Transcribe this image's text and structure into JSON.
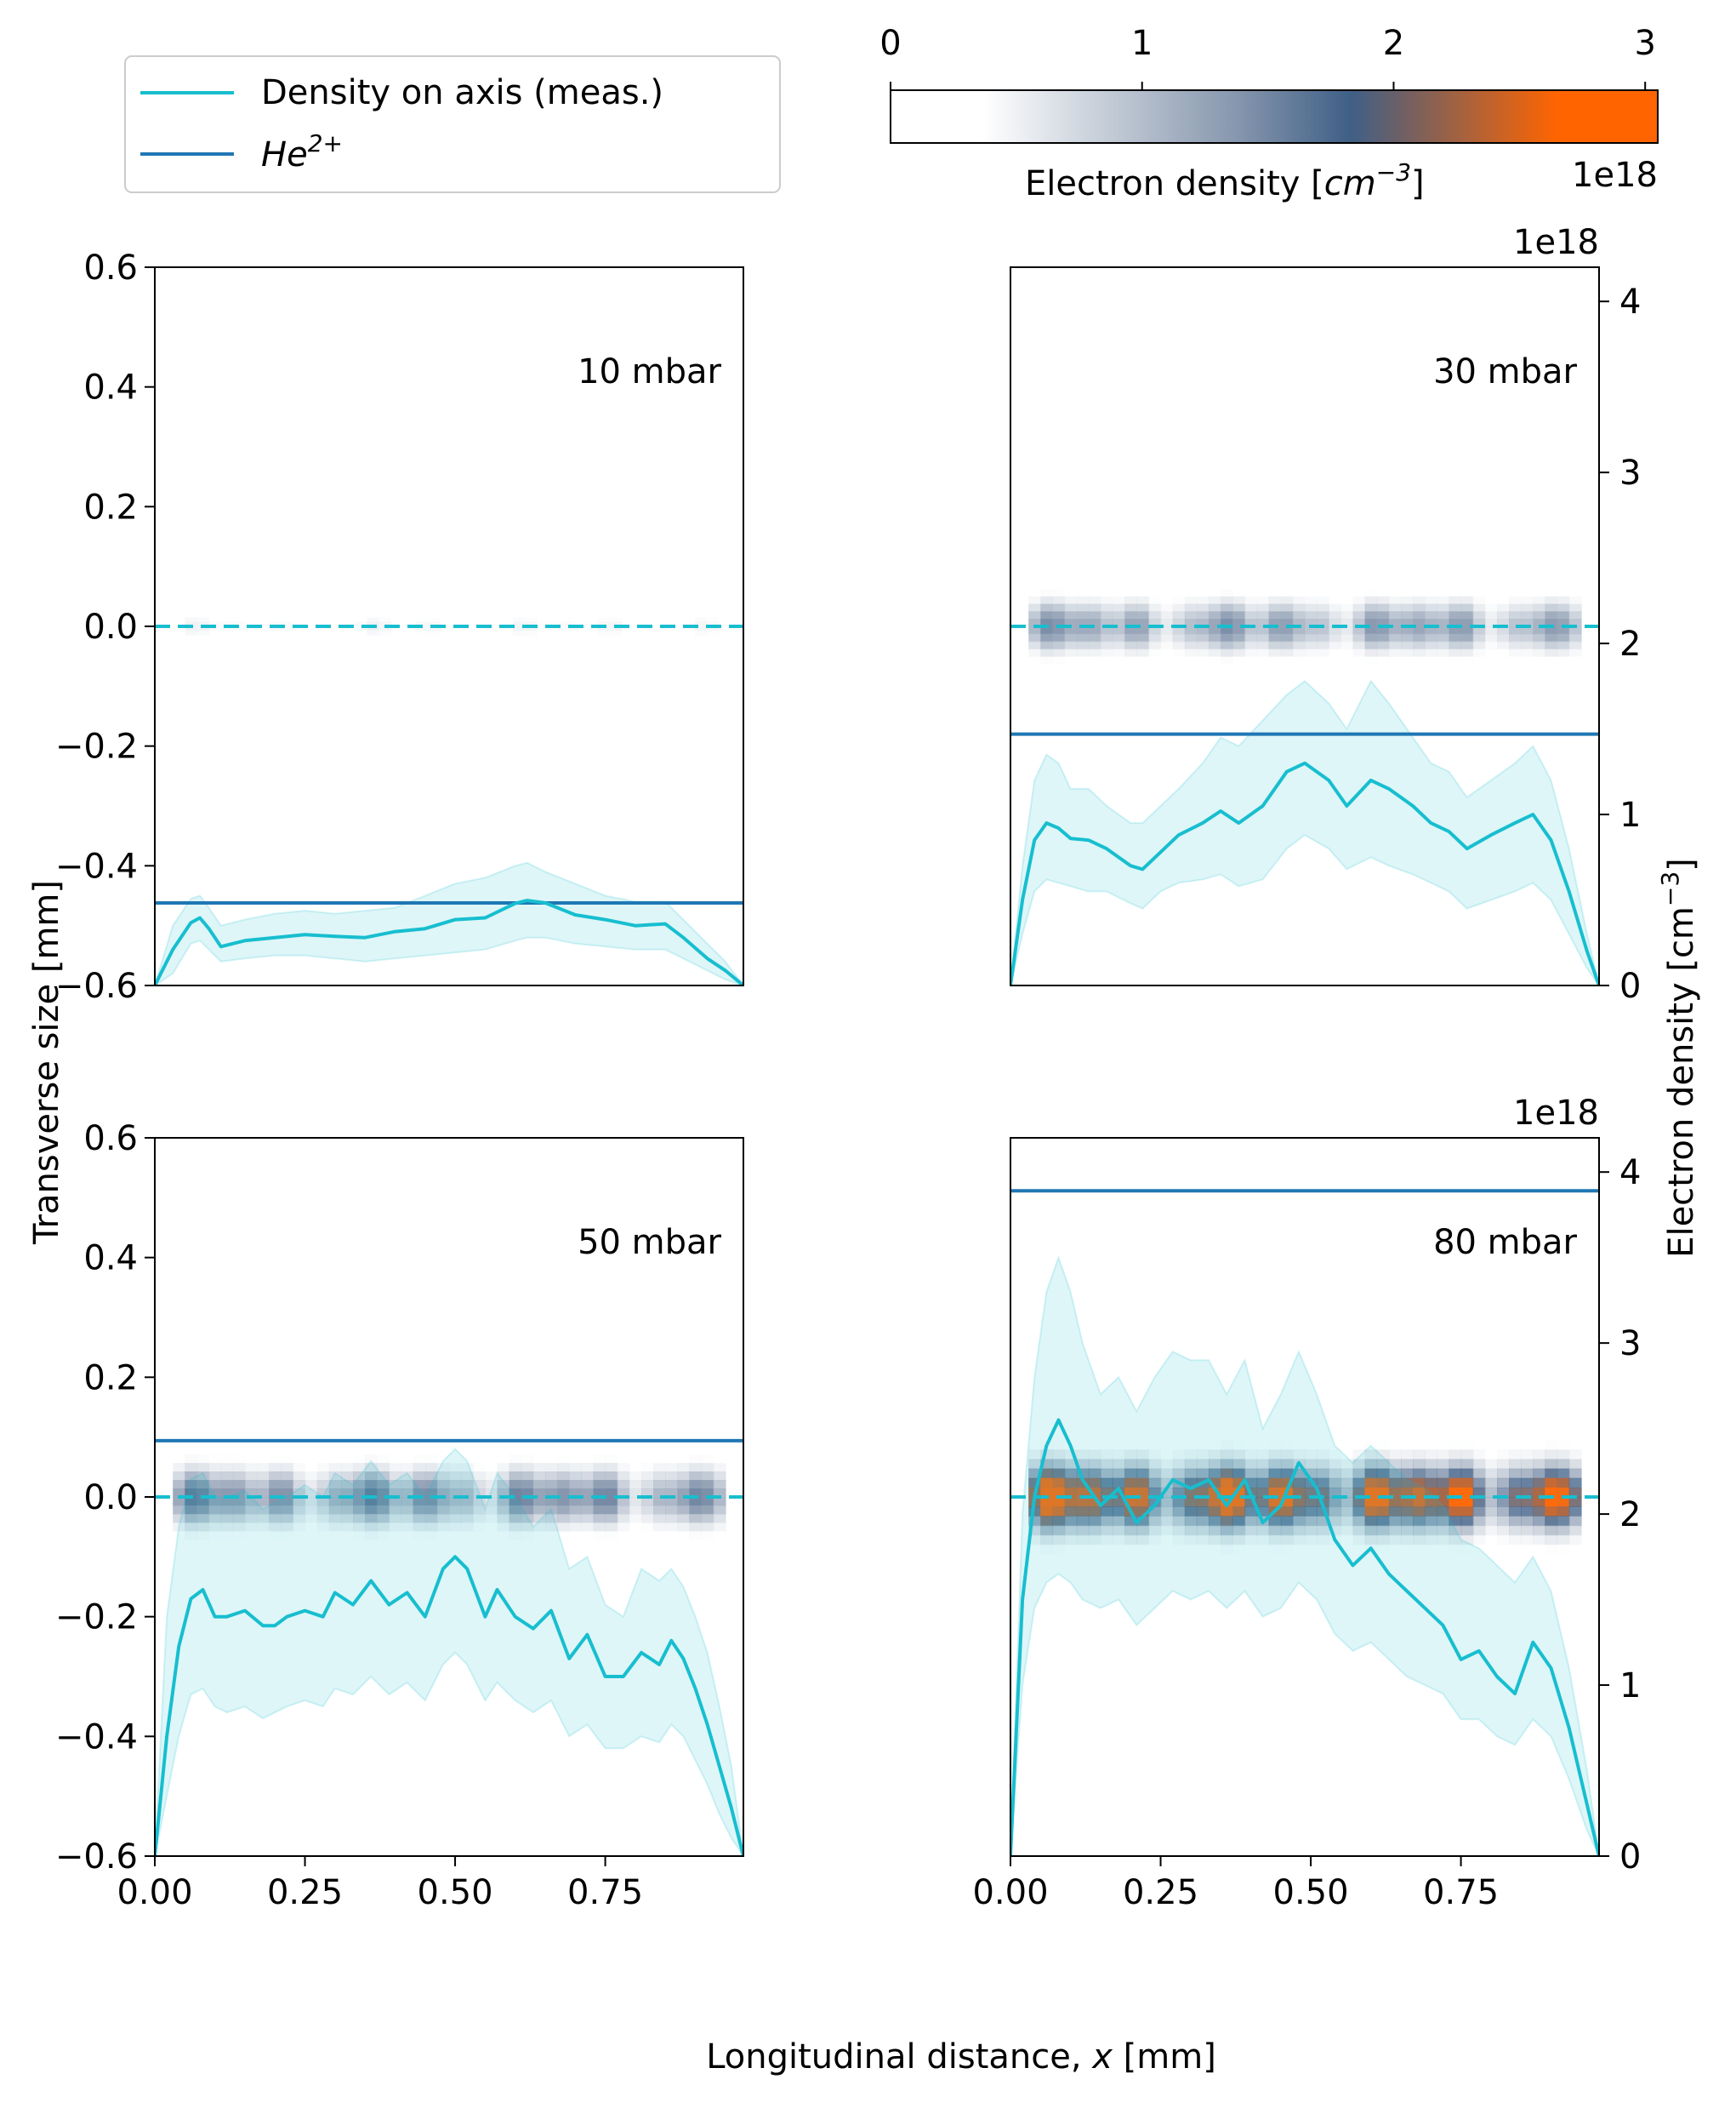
{
  "figure": {
    "xlabel": "Longitudinal distance, x [mm]",
    "xlabel_prefix": "Longitudinal distance, ",
    "xlabel_var": "x",
    "xlabel_unit": " [mm]",
    "ylabel_left": "Transverse size [mm]",
    "ylabel_right": "Electron density [cm⁻³]",
    "ylabel_right_base": "Electron density [cm",
    "ylabel_right_exp": "−3",
    "ylabel_right_close": "]"
  },
  "legend": {
    "entries": [
      {
        "label": "Density on axis (meas.)",
        "color": "#17becf"
      },
      {
        "label_base": "He",
        "label_sup": "2+",
        "label": "He2+",
        "color": "#1f77b4"
      }
    ]
  },
  "colorbar": {
    "label_base": "Electron density [",
    "label_var": "cm",
    "label_exp": "−3",
    "label_close": "]",
    "label": "Electron density [cm⁻³]",
    "ticks": [
      "0",
      "1",
      "2",
      "3"
    ],
    "offset": "1e18",
    "range": [
      0,
      3.05
    ],
    "colors": [
      "#ffffff",
      "#ffffff",
      "#8797ae",
      "#3f5f86",
      "#ff6400",
      "#ff6400"
    ]
  },
  "chart_data": [
    {
      "type": "line",
      "panel": "10 mbar",
      "annotation": "10 mbar",
      "xlim": [
        0,
        0.98
      ],
      "ylim": [
        -0.6,
        0.6
      ],
      "xticks": [
        "0.00",
        "0.25",
        "0.50",
        "0.75"
      ],
      "yticks": [
        "0.6",
        "0.4",
        "0.2",
        "0.0",
        "−0.2",
        "−0.4",
        "−0.6"
      ],
      "show_xticks": false,
      "show_left_yticks": true,
      "show_right_axis": false,
      "dashed_axis_y": 0.0,
      "he2_level": -0.462,
      "heatmap": {
        "x_range": [
          0.03,
          0.96
        ],
        "half_width": 0.045,
        "max_density_1e18": 0.5
      },
      "density_curve": {
        "x": [
          0.0,
          0.03,
          0.06,
          0.075,
          0.09,
          0.11,
          0.15,
          0.2,
          0.25,
          0.3,
          0.35,
          0.4,
          0.45,
          0.5,
          0.55,
          0.6,
          0.62,
          0.65,
          0.7,
          0.75,
          0.8,
          0.85,
          0.88,
          0.92,
          0.95,
          0.98
        ],
        "y": [
          -0.6,
          -0.54,
          -0.495,
          -0.487,
          -0.505,
          -0.535,
          -0.525,
          -0.52,
          -0.515,
          -0.518,
          -0.52,
          -0.51,
          -0.505,
          -0.49,
          -0.487,
          -0.463,
          -0.458,
          -0.462,
          -0.482,
          -0.49,
          -0.5,
          -0.497,
          -0.52,
          -0.555,
          -0.575,
          -0.6
        ],
        "band_upper": [
          -0.6,
          -0.5,
          -0.455,
          -0.45,
          -0.47,
          -0.5,
          -0.49,
          -0.48,
          -0.475,
          -0.48,
          -0.475,
          -0.47,
          -0.45,
          -0.43,
          -0.42,
          -0.4,
          -0.395,
          -0.41,
          -0.43,
          -0.45,
          -0.46,
          -0.46,
          -0.49,
          -0.53,
          -0.56,
          -0.6
        ],
        "band_lower": [
          -0.6,
          -0.58,
          -0.53,
          -0.525,
          -0.54,
          -0.56,
          -0.555,
          -0.55,
          -0.55,
          -0.555,
          -0.56,
          -0.555,
          -0.55,
          -0.545,
          -0.54,
          -0.525,
          -0.52,
          -0.52,
          -0.53,
          -0.535,
          -0.54,
          -0.54,
          -0.555,
          -0.575,
          -0.59,
          -0.6
        ]
      }
    },
    {
      "type": "line",
      "panel": "30 mbar",
      "annotation": "30 mbar",
      "xlim": [
        0,
        0.98
      ],
      "ylim": [
        -0.6,
        0.6
      ],
      "xticks": [
        "0.00",
        "0.25",
        "0.50",
        "0.75"
      ],
      "yticks_right": [
        "0",
        "1",
        "2",
        "3",
        "4"
      ],
      "right_ylim": [
        0,
        4.2
      ],
      "right_offset": "1e18",
      "show_xticks": false,
      "show_left_yticks": false,
      "show_right_axis": true,
      "dashed_axis_y": 0.0,
      "he2_level": 1.47,
      "heatmap": {
        "x_range": [
          0.03,
          0.95
        ],
        "half_width": 0.075,
        "max_density_1e18": 1.5
      },
      "density_curve": {
        "x": [
          0.0,
          0.02,
          0.04,
          0.06,
          0.08,
          0.1,
          0.13,
          0.16,
          0.2,
          0.22,
          0.25,
          0.28,
          0.32,
          0.35,
          0.38,
          0.42,
          0.46,
          0.49,
          0.53,
          0.56,
          0.6,
          0.63,
          0.67,
          0.7,
          0.73,
          0.76,
          0.8,
          0.84,
          0.87,
          0.9,
          0.93,
          0.96,
          0.98
        ],
        "y": [
          0,
          0.5,
          0.85,
          0.95,
          0.92,
          0.86,
          0.85,
          0.8,
          0.7,
          0.68,
          0.78,
          0.88,
          0.95,
          1.02,
          0.95,
          1.05,
          1.25,
          1.3,
          1.2,
          1.05,
          1.2,
          1.15,
          1.05,
          0.95,
          0.9,
          0.8,
          0.88,
          0.95,
          1.0,
          0.85,
          0.55,
          0.2,
          0
        ],
        "band_upper": [
          0,
          0.7,
          1.2,
          1.35,
          1.3,
          1.15,
          1.15,
          1.05,
          0.95,
          0.95,
          1.05,
          1.15,
          1.3,
          1.45,
          1.4,
          1.55,
          1.7,
          1.78,
          1.65,
          1.5,
          1.78,
          1.65,
          1.45,
          1.3,
          1.25,
          1.1,
          1.2,
          1.3,
          1.4,
          1.2,
          0.8,
          0.3,
          0
        ],
        "band_lower": [
          0,
          0.3,
          0.55,
          0.62,
          0.6,
          0.58,
          0.55,
          0.55,
          0.48,
          0.45,
          0.55,
          0.6,
          0.62,
          0.65,
          0.58,
          0.62,
          0.8,
          0.88,
          0.8,
          0.68,
          0.75,
          0.7,
          0.65,
          0.6,
          0.55,
          0.45,
          0.5,
          0.55,
          0.6,
          0.5,
          0.3,
          0.1,
          0
        ]
      }
    },
    {
      "type": "line",
      "panel": "50 mbar",
      "annotation": "50 mbar",
      "xlim": [
        0,
        0.98
      ],
      "ylim": [
        -0.6,
        0.6
      ],
      "xticks": [
        "0.00",
        "0.25",
        "0.50",
        "0.75"
      ],
      "yticks": [
        "0.6",
        "0.4",
        "0.2",
        "0.0",
        "−0.2",
        "−0.4",
        "−0.6"
      ],
      "show_xticks": true,
      "show_left_yticks": true,
      "show_right_axis": false,
      "dashed_axis_y": 0.0,
      "he2_level": 0.094,
      "heatmap": {
        "x_range": [
          0.03,
          0.95
        ],
        "half_width": 0.085,
        "max_density_1e18": 1.7
      },
      "density_curve": {
        "x": [
          0.0,
          0.02,
          0.04,
          0.06,
          0.08,
          0.1,
          0.12,
          0.15,
          0.18,
          0.2,
          0.22,
          0.25,
          0.28,
          0.3,
          0.33,
          0.36,
          0.39,
          0.42,
          0.45,
          0.48,
          0.5,
          0.52,
          0.55,
          0.57,
          0.6,
          0.63,
          0.66,
          0.69,
          0.72,
          0.75,
          0.78,
          0.81,
          0.84,
          0.86,
          0.88,
          0.9,
          0.92,
          0.94,
          0.96,
          0.98
        ],
        "y": [
          -0.6,
          -0.4,
          -0.25,
          -0.17,
          -0.155,
          -0.2,
          -0.2,
          -0.19,
          -0.215,
          -0.215,
          -0.2,
          -0.19,
          -0.2,
          -0.16,
          -0.18,
          -0.14,
          -0.18,
          -0.16,
          -0.2,
          -0.12,
          -0.1,
          -0.12,
          -0.2,
          -0.155,
          -0.2,
          -0.22,
          -0.19,
          -0.27,
          -0.23,
          -0.3,
          -0.3,
          -0.26,
          -0.28,
          -0.24,
          -0.27,
          -0.32,
          -0.38,
          -0.45,
          -0.52,
          -0.6
        ],
        "band_upper": [
          -0.6,
          -0.2,
          -0.05,
          0.03,
          0.04,
          0.0,
          0.0,
          0.01,
          -0.02,
          -0.01,
          0.0,
          0.02,
          0.0,
          0.04,
          0.02,
          0.06,
          0.02,
          0.04,
          0.0,
          0.06,
          0.08,
          0.06,
          -0.02,
          0.04,
          0.0,
          -0.05,
          -0.02,
          -0.12,
          -0.1,
          -0.18,
          -0.2,
          -0.12,
          -0.14,
          -0.12,
          -0.15,
          -0.2,
          -0.26,
          -0.35,
          -0.45,
          -0.6
        ],
        "band_lower": [
          -0.6,
          -0.5,
          -0.4,
          -0.33,
          -0.32,
          -0.35,
          -0.36,
          -0.35,
          -0.37,
          -0.36,
          -0.35,
          -0.34,
          -0.35,
          -0.32,
          -0.33,
          -0.3,
          -0.33,
          -0.31,
          -0.34,
          -0.28,
          -0.26,
          -0.28,
          -0.34,
          -0.31,
          -0.34,
          -0.36,
          -0.34,
          -0.4,
          -0.38,
          -0.42,
          -0.42,
          -0.4,
          -0.41,
          -0.38,
          -0.4,
          -0.44,
          -0.48,
          -0.53,
          -0.57,
          -0.6
        ]
      }
    },
    {
      "type": "line",
      "panel": "80 mbar",
      "annotation": "80 mbar",
      "xlim": [
        0,
        0.98
      ],
      "ylim": [
        -0.6,
        0.6
      ],
      "xticks": [
        "0.00",
        "0.25",
        "0.50",
        "0.75"
      ],
      "yticks_right": [
        "0",
        "1",
        "2",
        "3",
        "4"
      ],
      "right_ylim": [
        0,
        4.2
      ],
      "right_offset": "1e18",
      "show_xticks": true,
      "show_left_yticks": false,
      "show_right_axis": true,
      "dashed_axis_y": 0.0,
      "he2_level": 3.89,
      "heatmap": {
        "x_range": [
          0.03,
          0.95
        ],
        "half_width": 0.095,
        "max_density_1e18": 3.0
      },
      "density_curve": {
        "x": [
          0.0,
          0.02,
          0.04,
          0.06,
          0.08,
          0.1,
          0.12,
          0.15,
          0.18,
          0.21,
          0.24,
          0.27,
          0.3,
          0.33,
          0.36,
          0.39,
          0.42,
          0.45,
          0.48,
          0.51,
          0.54,
          0.57,
          0.6,
          0.63,
          0.66,
          0.69,
          0.72,
          0.75,
          0.78,
          0.81,
          0.84,
          0.87,
          0.9,
          0.93,
          0.96,
          0.98
        ],
        "y": [
          0,
          1.5,
          2.1,
          2.4,
          2.55,
          2.4,
          2.2,
          2.05,
          2.15,
          1.95,
          2.05,
          2.2,
          2.15,
          2.2,
          2.05,
          2.2,
          1.95,
          2.05,
          2.3,
          2.15,
          1.85,
          1.7,
          1.8,
          1.65,
          1.55,
          1.45,
          1.35,
          1.15,
          1.2,
          1.05,
          0.95,
          1.25,
          1.1,
          0.75,
          0.3,
          0
        ],
        "band_upper": [
          0,
          2.0,
          2.8,
          3.3,
          3.5,
          3.3,
          3.0,
          2.7,
          2.8,
          2.6,
          2.8,
          2.95,
          2.9,
          2.9,
          2.7,
          2.9,
          2.5,
          2.7,
          2.95,
          2.7,
          2.4,
          2.3,
          2.4,
          2.3,
          2.2,
          2.15,
          2.05,
          1.85,
          1.8,
          1.7,
          1.6,
          1.75,
          1.55,
          1.1,
          0.5,
          0
        ],
        "band_lower": [
          0,
          1.0,
          1.45,
          1.6,
          1.65,
          1.6,
          1.5,
          1.45,
          1.5,
          1.35,
          1.45,
          1.55,
          1.5,
          1.55,
          1.45,
          1.55,
          1.4,
          1.45,
          1.6,
          1.5,
          1.3,
          1.2,
          1.25,
          1.15,
          1.05,
          1.0,
          0.95,
          0.8,
          0.8,
          0.7,
          0.65,
          0.8,
          0.7,
          0.45,
          0.15,
          0
        ]
      }
    }
  ]
}
